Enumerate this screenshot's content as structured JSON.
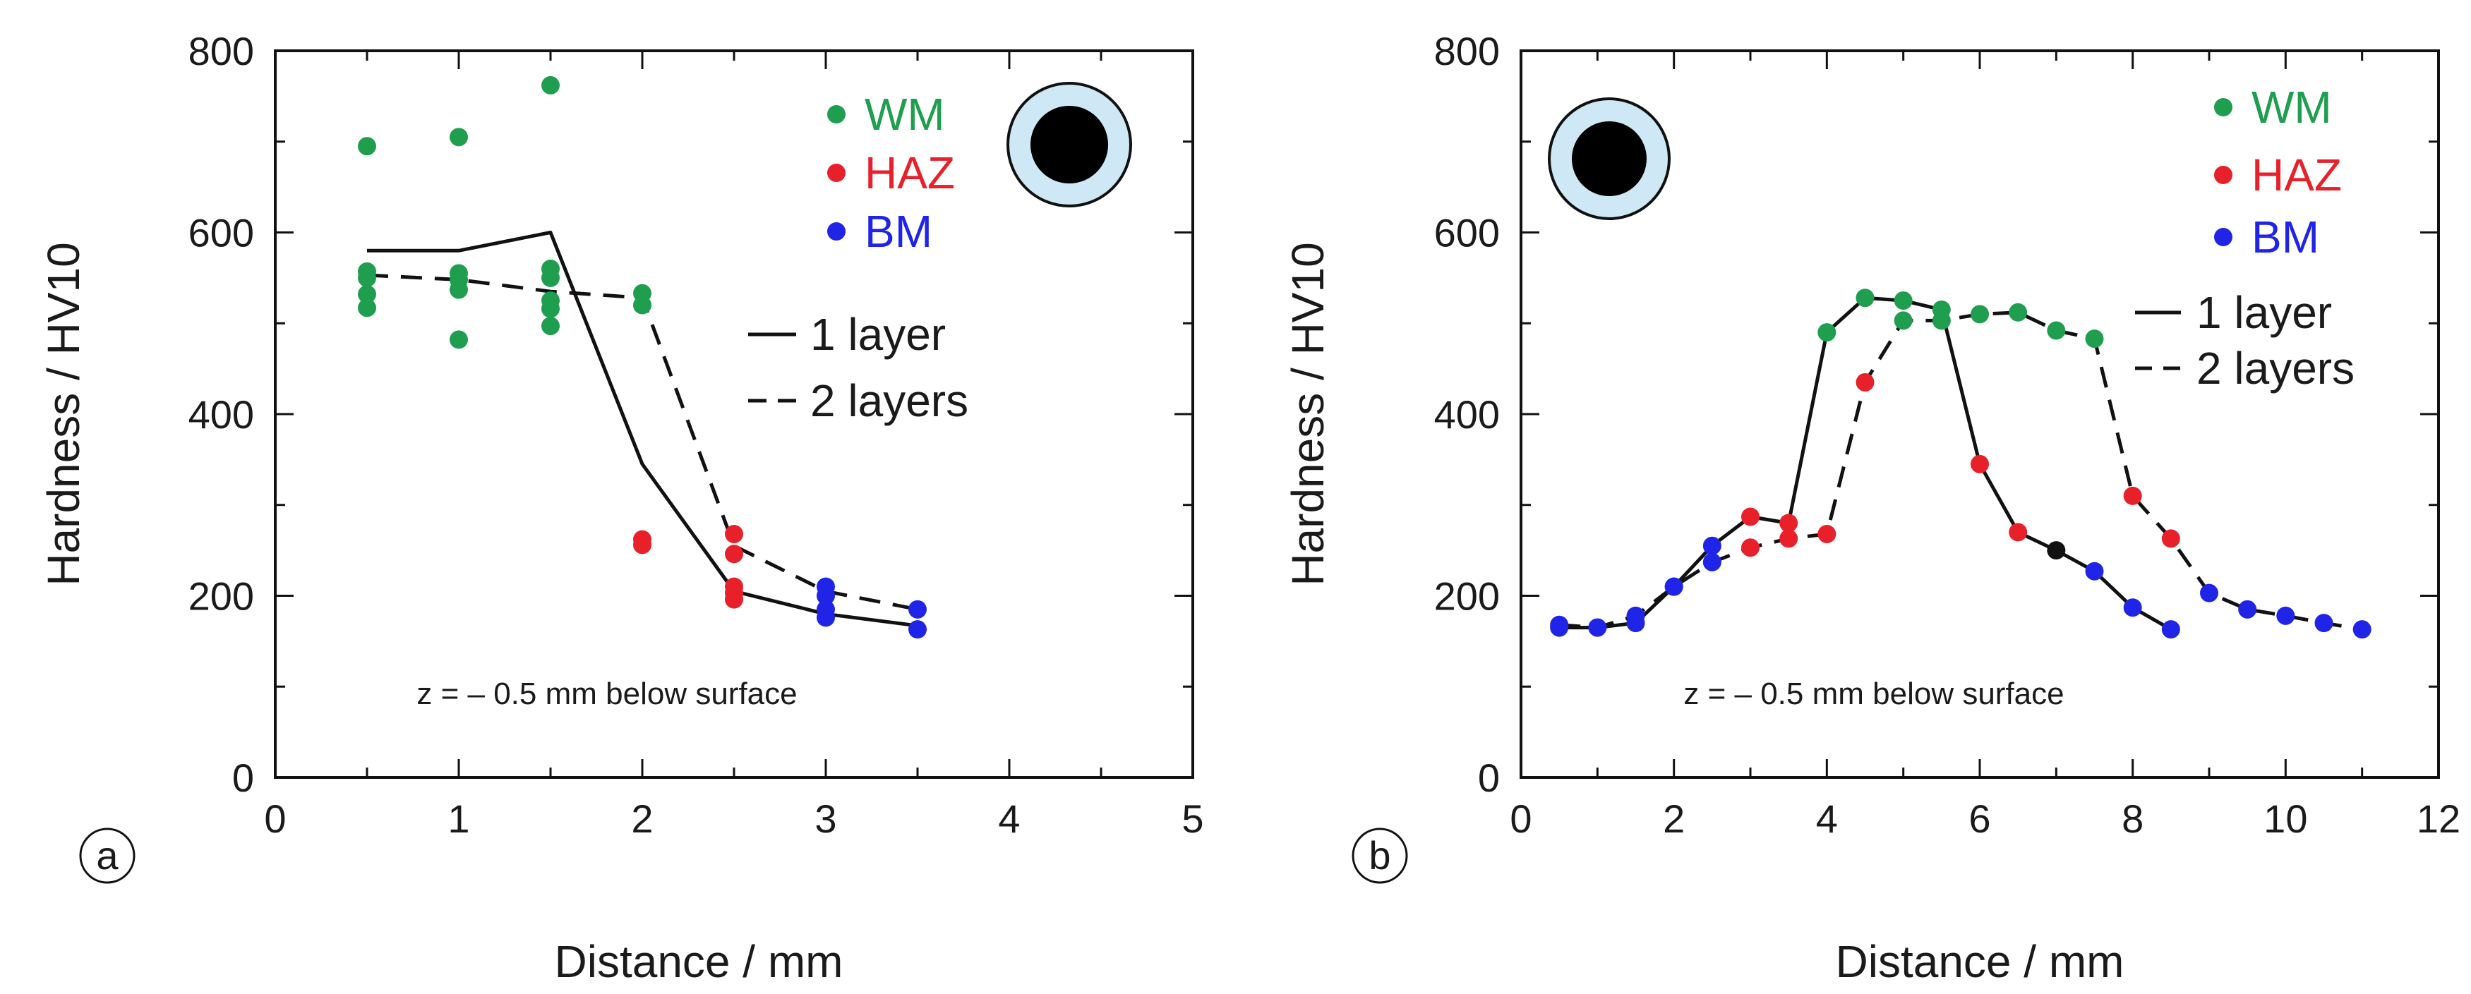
{
  "colors": {
    "WM": "#1e9e4e",
    "HAZ": "#e8202a",
    "BM": "#1f24e6",
    "extra": "#111111",
    "line": "#111111",
    "ring": "#cfe8f6"
  },
  "chart_data": [
    {
      "type": "scatter",
      "panel_label": "a",
      "xlabel": "Distance / mm",
      "ylabel": "Hardness / HV10",
      "xlim": [
        0,
        5
      ],
      "ylim": [
        0,
        800
      ],
      "xticks": [
        0,
        1,
        2,
        3,
        4,
        5
      ],
      "yticks": [
        0,
        200,
        400,
        600,
        800
      ],
      "legend": [
        {
          "label": "WM",
          "color": "#1e9e4e"
        },
        {
          "label": "HAZ",
          "color": "#e8202a"
        },
        {
          "label": "BM",
          "color": "#1f24e6"
        }
      ],
      "line_legend": [
        {
          "label": "1 layer",
          "style": "solid"
        },
        {
          "label": "2 layers",
          "style": "dashed"
        }
      ],
      "annotation": "z = – 0.5 mm below surface",
      "schematic": "ring-right",
      "points": [
        {
          "group": "WM",
          "x": 0.5,
          "y": 695
        },
        {
          "group": "WM",
          "x": 0.5,
          "y": 557
        },
        {
          "group": "WM",
          "x": 0.5,
          "y": 550
        },
        {
          "group": "WM",
          "x": 0.5,
          "y": 532
        },
        {
          "group": "WM",
          "x": 0.5,
          "y": 517
        },
        {
          "group": "WM",
          "x": 1.0,
          "y": 705
        },
        {
          "group": "WM",
          "x": 1.0,
          "y": 555
        },
        {
          "group": "WM",
          "x": 1.0,
          "y": 548
        },
        {
          "group": "WM",
          "x": 1.0,
          "y": 537
        },
        {
          "group": "WM",
          "x": 1.0,
          "y": 482
        },
        {
          "group": "WM",
          "x": 1.5,
          "y": 762
        },
        {
          "group": "WM",
          "x": 1.5,
          "y": 560
        },
        {
          "group": "WM",
          "x": 1.5,
          "y": 550
        },
        {
          "group": "WM",
          "x": 1.5,
          "y": 525
        },
        {
          "group": "WM",
          "x": 1.5,
          "y": 516
        },
        {
          "group": "WM",
          "x": 1.5,
          "y": 497
        },
        {
          "group": "WM",
          "x": 2.0,
          "y": 533
        },
        {
          "group": "WM",
          "x": 2.0,
          "y": 520
        },
        {
          "group": "HAZ",
          "x": 2.0,
          "y": 262
        },
        {
          "group": "HAZ",
          "x": 2.0,
          "y": 256
        },
        {
          "group": "HAZ",
          "x": 2.5,
          "y": 268
        },
        {
          "group": "HAZ",
          "x": 2.5,
          "y": 246
        },
        {
          "group": "HAZ",
          "x": 2.5,
          "y": 210
        },
        {
          "group": "HAZ",
          "x": 2.5,
          "y": 203
        },
        {
          "group": "HAZ",
          "x": 2.5,
          "y": 196
        },
        {
          "group": "BM",
          "x": 3.0,
          "y": 210
        },
        {
          "group": "BM",
          "x": 3.0,
          "y": 200
        },
        {
          "group": "BM",
          "x": 3.0,
          "y": 185
        },
        {
          "group": "BM",
          "x": 3.0,
          "y": 176
        },
        {
          "group": "BM",
          "x": 3.5,
          "y": 185
        },
        {
          "group": "BM",
          "x": 3.5,
          "y": 163
        }
      ],
      "series": [
        {
          "name": "1 layer",
          "style": "solid",
          "x": [
            0.5,
            1.0,
            1.5,
            2.0,
            2.5,
            3.0,
            3.5
          ],
          "y": [
            580,
            580,
            600,
            345,
            205,
            180,
            167
          ]
        },
        {
          "name": "2 layers",
          "style": "dashed",
          "x": [
            0.5,
            1.0,
            1.5,
            2.0,
            2.5,
            3.0,
            3.5
          ],
          "y": [
            553,
            548,
            535,
            528,
            255,
            205,
            185
          ]
        }
      ]
    },
    {
      "type": "line",
      "panel_label": "b",
      "xlabel": "Distance / mm",
      "ylabel": "Hardness / HV10",
      "xlim": [
        0,
        12
      ],
      "ylim": [
        0,
        800
      ],
      "xticks": [
        0,
        2,
        4,
        6,
        8,
        10,
        12
      ],
      "yticks": [
        0,
        200,
        400,
        600,
        800
      ],
      "legend": [
        {
          "label": "WM",
          "color": "#1e9e4e"
        },
        {
          "label": "HAZ",
          "color": "#e8202a"
        },
        {
          "label": "BM",
          "color": "#1f24e6"
        }
      ],
      "line_legend": [
        {
          "label": "1 layer",
          "style": "solid"
        },
        {
          "label": "2 layers",
          "style": "dashed"
        }
      ],
      "annotation": "z = – 0.5 mm below surface",
      "schematic": "ring-left",
      "series": [
        {
          "name": "1 layer",
          "style": "solid",
          "x": [
            0.5,
            1.0,
            1.5,
            2.0,
            2.5,
            3.0,
            3.5,
            4.0,
            4.5,
            5.0,
            5.5,
            6.0,
            6.5,
            7.0,
            7.5,
            8.0,
            8.5
          ],
          "y": [
            165,
            165,
            170,
            210,
            255,
            287,
            280,
            490,
            528,
            525,
            515,
            345,
            270,
            250,
            227,
            187,
            163
          ],
          "groups": [
            "BM",
            "BM",
            "BM",
            "BM",
            "BM",
            "HAZ",
            "HAZ",
            "WM",
            "WM",
            "WM",
            "WM",
            "HAZ",
            "HAZ",
            "extra",
            "BM",
            "BM",
            "BM"
          ]
        },
        {
          "name": "2 layers",
          "style": "dashed",
          "x": [
            0.5,
            1.0,
            1.5,
            2.0,
            2.5,
            3.0,
            3.5,
            4.0,
            4.5,
            5.0,
            5.5,
            6.0,
            6.5,
            7.0,
            7.5,
            8.0,
            8.5,
            9.0,
            9.5,
            10.0,
            10.5,
            11.0
          ],
          "y": [
            168,
            165,
            178,
            210,
            237,
            253,
            263,
            268,
            435,
            503,
            503,
            510,
            512,
            492,
            483,
            310,
            263,
            203,
            185,
            178,
            170,
            163
          ],
          "groups": [
            "BM",
            "BM",
            "BM",
            "BM",
            "BM",
            "HAZ",
            "HAZ",
            "HAZ",
            "HAZ",
            "WM",
            "WM",
            "WM",
            "WM",
            "WM",
            "WM",
            "HAZ",
            "HAZ",
            "BM",
            "BM",
            "BM",
            "BM",
            "BM"
          ]
        }
      ]
    }
  ]
}
